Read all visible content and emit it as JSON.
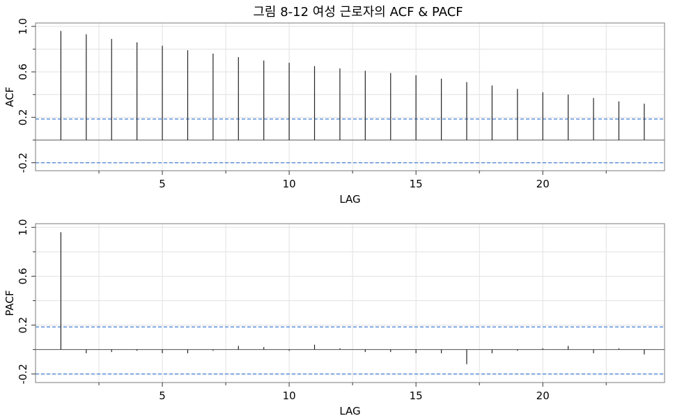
{
  "chart_data": [
    {
      "type": "bar",
      "title": "그림 8-12 여성 근로자의 ACF & PACF",
      "xlabel": "LAG",
      "ylabel": "ACF",
      "xlim": [
        0,
        24.8
      ],
      "ylim": [
        -0.27,
        1.03
      ],
      "x_ticks": [
        5,
        10,
        15,
        20
      ],
      "x_tick_labels": [
        "5",
        "10",
        "15",
        "20"
      ],
      "y_ticks": [
        -0.2,
        0.2,
        0.6,
        1.0
      ],
      "y_tick_labels": [
        "-0.2",
        "0.2",
        "0.6",
        "1.0"
      ],
      "grid": true,
      "confidence_bounds": [
        0.185,
        -0.2
      ],
      "lags": [
        1,
        2,
        3,
        4,
        5,
        6,
        7,
        8,
        9,
        10,
        11,
        12,
        13,
        14,
        15,
        16,
        17,
        18,
        19,
        20,
        21,
        22,
        23,
        24
      ],
      "values": [
        0.96,
        0.93,
        0.89,
        0.86,
        0.83,
        0.79,
        0.76,
        0.73,
        0.7,
        0.68,
        0.65,
        0.63,
        0.61,
        0.59,
        0.57,
        0.54,
        0.51,
        0.48,
        0.45,
        0.42,
        0.4,
        0.37,
        0.34,
        0.32
      ]
    },
    {
      "type": "bar",
      "title": "",
      "xlabel": "LAG",
      "ylabel": "PACF",
      "xlim": [
        0,
        24.8
      ],
      "ylim": [
        -0.27,
        1.03
      ],
      "x_ticks": [
        5,
        10,
        15,
        20
      ],
      "x_tick_labels": [
        "5",
        "10",
        "15",
        "20"
      ],
      "y_ticks": [
        -0.2,
        0.2,
        0.6,
        1.0
      ],
      "y_tick_labels": [
        "-0.2",
        "0.2",
        "0.6",
        "1.0"
      ],
      "grid": true,
      "confidence_bounds": [
        0.185,
        -0.2
      ],
      "lags": [
        1,
        2,
        3,
        4,
        5,
        6,
        7,
        8,
        9,
        10,
        11,
        12,
        13,
        14,
        15,
        16,
        17,
        18,
        19,
        20,
        21,
        22,
        23,
        24
      ],
      "values": [
        0.96,
        -0.03,
        -0.02,
        -0.01,
        -0.03,
        -0.03,
        -0.01,
        0.03,
        0.02,
        -0.01,
        0.04,
        0.01,
        -0.02,
        -0.02,
        -0.03,
        -0.03,
        -0.12,
        -0.03,
        -0.01,
        0.01,
        0.03,
        -0.03,
        0.01,
        -0.04
      ]
    }
  ]
}
